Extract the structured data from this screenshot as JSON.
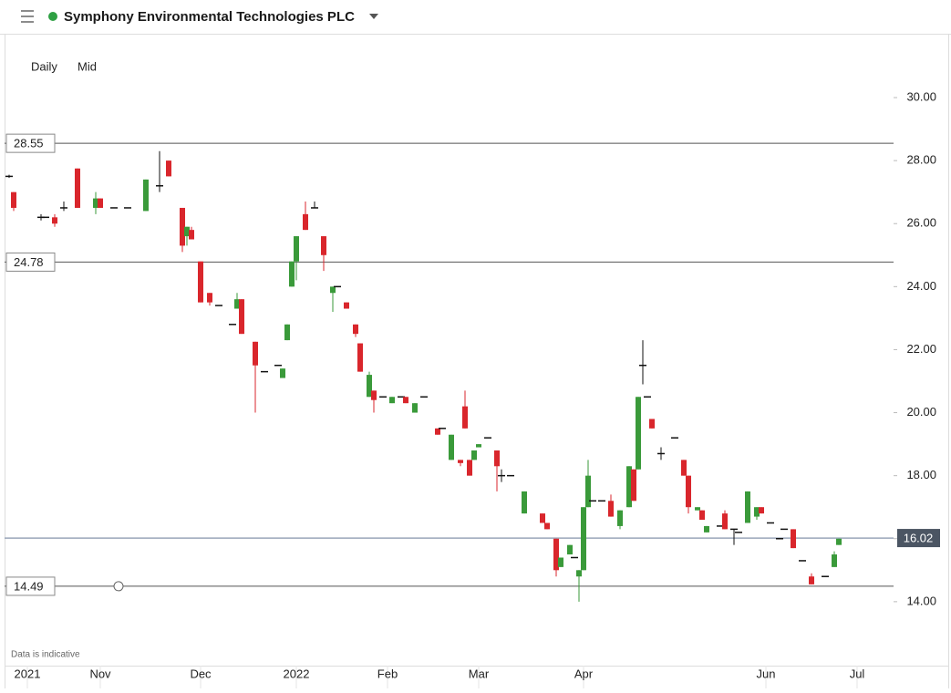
{
  "header": {
    "title": "Symphony Environmental Technologies PLC"
  },
  "controls": {
    "interval": "Daily",
    "price_type": "Mid"
  },
  "note": "Data is indicative",
  "chart_data": {
    "type": "candlestick",
    "x": [
      1,
      2,
      8,
      9,
      11,
      13,
      16,
      20,
      21,
      24,
      27,
      31,
      34,
      36,
      39,
      40,
      41,
      43,
      45,
      47,
      50,
      51,
      52,
      55,
      57,
      60,
      61,
      62,
      63,
      64,
      66,
      68,
      70,
      72,
      73,
      75,
      77,
      78,
      80,
      81,
      83,
      85,
      87,
      88,
      90,
      92,
      95,
      96,
      98,
      100,
      101,
      102,
      103,
      104,
      106,
      108,
      109,
      111,
      114,
      118,
      119,
      121,
      122,
      124,
      125,
      126,
      127,
      128,
      129,
      131,
      133,
      135,
      137,
      138,
      139,
      140,
      141,
      142,
      144,
      147,
      149,
      150,
      152,
      153,
      154,
      157,
      158,
      160,
      161,
      163,
      165,
      166,
      168,
      170,
      171,
      173,
      175,
      177,
      180,
      182,
      183
    ],
    "open": [
      27.5,
      27.0,
      26.2,
      26.2,
      26.2,
      26.5,
      27.75,
      26.5,
      26.8,
      26.5,
      26.5,
      26.4,
      27.2,
      28.0,
      26.5,
      25.6,
      25.8,
      24.8,
      23.8,
      23.4,
      22.8,
      23.3,
      23.6,
      22.25,
      21.3,
      21.5,
      21.1,
      22.3,
      24.0,
      24.8,
      26.3,
      26.5,
      25.6,
      23.8,
      24.0,
      23.5,
      22.8,
      22.2,
      20.5,
      20.7,
      20.5,
      20.3,
      20.5,
      20.5,
      20.0,
      20.5,
      19.5,
      19.5,
      18.5,
      18.5,
      20.2,
      18.5,
      18.5,
      18.9,
      19.2,
      18.8,
      18.0,
      18.0,
      16.8,
      16.8,
      16.5,
      16.0,
      15.1,
      15.5,
      15.4,
      14.8,
      15.0,
      17.0,
      17.2,
      17.2,
      17.2,
      16.4,
      17.0,
      18.2,
      18.2,
      21.5,
      20.5,
      19.8,
      18.7,
      19.2,
      18.5,
      18.0,
      16.9,
      16.9,
      16.2,
      16.4,
      16.8,
      16.3,
      16.2,
      16.5,
      16.7,
      17.0,
      16.5,
      16.0,
      16.3,
      16.3,
      15.3,
      14.8,
      14.8,
      15.1,
      15.8
    ],
    "high": [
      27.55,
      27.0,
      26.3,
      26.2,
      26.3,
      26.7,
      27.75,
      27.0,
      26.8,
      26.5,
      26.5,
      27.4,
      28.3,
      28.0,
      26.5,
      25.9,
      25.9,
      24.8,
      23.8,
      23.4,
      22.8,
      23.8,
      23.6,
      22.25,
      21.3,
      21.5,
      21.4,
      22.8,
      24.8,
      25.6,
      26.7,
      26.7,
      25.6,
      24.0,
      24.0,
      23.5,
      22.8,
      22.2,
      21.3,
      20.7,
      20.5,
      20.5,
      20.5,
      20.5,
      20.3,
      20.5,
      19.5,
      19.5,
      19.3,
      18.5,
      20.7,
      18.5,
      18.8,
      19.0,
      19.2,
      18.8,
      18.2,
      18.0,
      17.5,
      16.8,
      16.5,
      16.0,
      15.4,
      15.8,
      15.4,
      15.0,
      17.0,
      18.5,
      17.2,
      17.2,
      17.4,
      16.9,
      18.3,
      18.2,
      20.5,
      22.3,
      20.5,
      19.8,
      18.9,
      19.2,
      18.5,
      18.0,
      17.0,
      16.9,
      16.4,
      16.4,
      16.9,
      16.3,
      16.2,
      17.5,
      17.0,
      17.0,
      16.5,
      16.0,
      16.3,
      16.3,
      15.3,
      14.9,
      14.8,
      15.6,
      16.0
    ],
    "low": [
      27.45,
      26.4,
      26.1,
      26.2,
      25.9,
      26.4,
      26.5,
      26.3,
      26.5,
      26.5,
      26.5,
      26.4,
      27.0,
      27.5,
      25.1,
      25.3,
      25.5,
      23.5,
      23.4,
      23.4,
      22.8,
      23.3,
      22.5,
      20.0,
      21.3,
      21.5,
      21.1,
      22.3,
      24.0,
      24.2,
      25.8,
      26.5,
      24.5,
      23.2,
      24.0,
      23.3,
      22.4,
      21.3,
      20.5,
      20.0,
      20.5,
      20.3,
      20.5,
      20.3,
      20.0,
      20.5,
      19.3,
      19.5,
      18.5,
      18.3,
      19.5,
      18.0,
      18.5,
      18.9,
      19.2,
      17.5,
      17.8,
      18.0,
      16.8,
      16.5,
      16.3,
      14.8,
      15.1,
      15.5,
      15.4,
      14.0,
      15.0,
      17.0,
      17.2,
      17.2,
      16.7,
      16.3,
      17.0,
      17.2,
      18.2,
      20.9,
      20.5,
      19.5,
      18.5,
      19.2,
      18.0,
      16.8,
      16.9,
      16.6,
      16.2,
      16.4,
      16.3,
      15.8,
      16.2,
      16.5,
      16.6,
      16.8,
      16.5,
      16.0,
      16.3,
      15.7,
      15.3,
      14.55,
      14.8,
      15.1,
      15.8
    ],
    "close": [
      27.5,
      26.5,
      26.2,
      26.2,
      26.0,
      26.5,
      26.5,
      26.8,
      26.5,
      26.5,
      26.5,
      27.4,
      27.2,
      27.5,
      25.3,
      25.9,
      25.5,
      23.5,
      23.5,
      23.4,
      22.8,
      23.6,
      22.5,
      21.5,
      21.3,
      21.5,
      21.4,
      22.8,
      24.8,
      25.6,
      25.8,
      26.5,
      25.0,
      24.0,
      24.0,
      23.3,
      22.5,
      21.3,
      21.2,
      20.4,
      20.5,
      20.5,
      20.5,
      20.3,
      20.3,
      20.5,
      19.3,
      19.5,
      19.3,
      18.4,
      19.5,
      18.0,
      18.8,
      19.0,
      19.2,
      18.3,
      18.0,
      18.0,
      17.5,
      16.5,
      16.3,
      15.0,
      15.4,
      15.8,
      15.4,
      15.0,
      17.0,
      18.0,
      17.2,
      17.2,
      16.7,
      16.9,
      18.3,
      17.2,
      20.5,
      21.5,
      20.5,
      19.5,
      18.7,
      19.2,
      18.0,
      17.0,
      17.0,
      16.6,
      16.4,
      16.4,
      16.3,
      16.3,
      16.2,
      17.5,
      17.0,
      16.8,
      16.5,
      16.0,
      16.3,
      15.7,
      15.3,
      14.55,
      14.8,
      15.5,
      16.0
    ],
    "up_color": "#3a9a3a",
    "down_color": "#d9262c",
    "flat_color": "#111111",
    "xlim": [
      0,
      195
    ],
    "xticks": [
      {
        "value": 5,
        "label": "2021"
      },
      {
        "value": 21,
        "label": "Nov"
      },
      {
        "value": 43,
        "label": "Dec"
      },
      {
        "value": 64,
        "label": "2022"
      },
      {
        "value": 84,
        "label": "Feb"
      },
      {
        "value": 104,
        "label": "Mar"
      },
      {
        "value": 127,
        "label": "Apr"
      },
      {
        "value": 167,
        "label": "Jun"
      },
      {
        "value": 187,
        "label": "Jul"
      }
    ],
    "ylim": [
      11.97,
      31.94
    ],
    "yticks": [
      {
        "value": 14,
        "label": "14.00"
      },
      {
        "value": 16,
        "label": "16.00"
      },
      {
        "value": 18,
        "label": "18.00"
      },
      {
        "value": 20,
        "label": "20.00"
      },
      {
        "value": 22,
        "label": "22.00"
      },
      {
        "value": 24,
        "label": "24.00"
      },
      {
        "value": 26,
        "label": "26.00"
      },
      {
        "value": 28,
        "label": "28.00"
      },
      {
        "value": 30,
        "label": "30.00"
      }
    ],
    "levels": [
      28.55,
      24.78,
      14.49
    ],
    "current_price": 16.02
  }
}
